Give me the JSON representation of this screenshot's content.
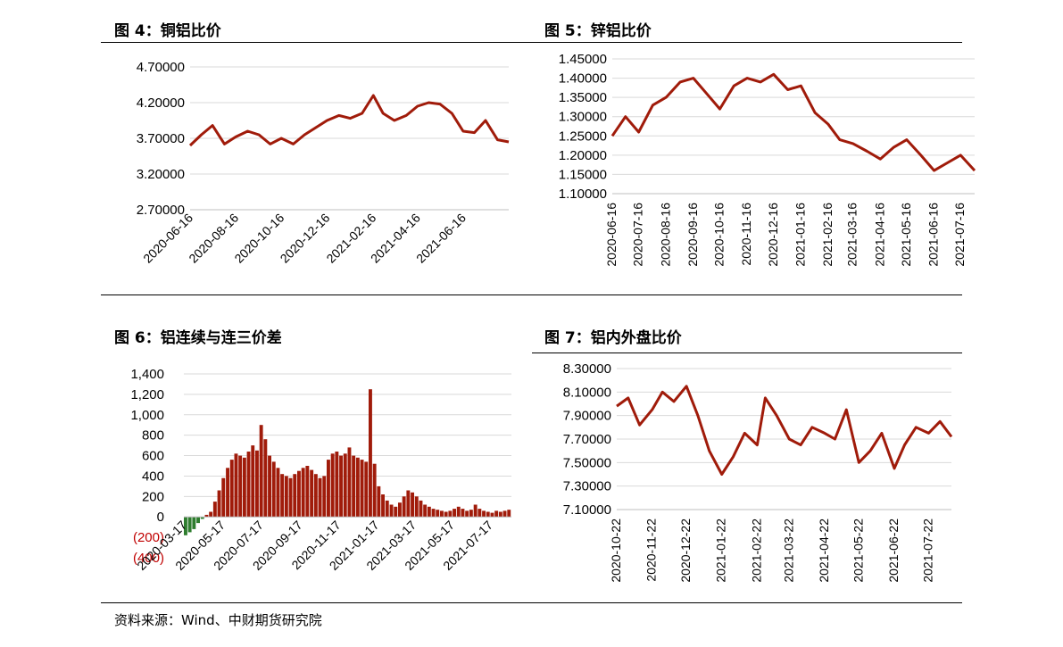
{
  "source_note": "资料来源：Wind、中财期货研究院",
  "colors": {
    "line": "#A01B0A",
    "bar_pos": "#A01B0A",
    "bar_neg": "#2E7D2E",
    "grid": "#D9D9D9",
    "neg_label": "#C00000"
  },
  "chart_data": [
    {
      "id": "fig4",
      "type": "line",
      "title": "图 4：铜铝比价",
      "ylim": [
        2.7,
        4.7
      ],
      "y_ticks": [
        "4.70000",
        "4.20000",
        "3.70000",
        "3.20000",
        "2.70000"
      ],
      "x_ticks": [
        "2020-06-16",
        "2020-08-16",
        "2020-10-16",
        "2020-12-16",
        "2021-02-16",
        "2021-04-16",
        "2021-06-16"
      ],
      "x": [
        "2020-06-16",
        "2020-07-01",
        "2020-07-16",
        "2020-08-01",
        "2020-08-16",
        "2020-09-01",
        "2020-09-16",
        "2020-10-01",
        "2020-10-16",
        "2020-11-01",
        "2020-11-16",
        "2020-12-01",
        "2020-12-16",
        "2021-01-01",
        "2021-01-16",
        "2021-02-01",
        "2021-02-16",
        "2021-03-01",
        "2021-03-16",
        "2021-04-01",
        "2021-04-16",
        "2021-05-01",
        "2021-05-16",
        "2021-06-01",
        "2021-06-16",
        "2021-07-01",
        "2021-07-16",
        "2021-08-01",
        "2021-08-16"
      ],
      "series": [
        {
          "values": [
            3.6,
            3.75,
            3.88,
            3.62,
            3.72,
            3.8,
            3.75,
            3.62,
            3.7,
            3.62,
            3.75,
            3.85,
            3.95,
            4.02,
            3.98,
            4.05,
            4.3,
            4.05,
            3.95,
            4.02,
            4.15,
            4.2,
            4.18,
            4.05,
            3.8,
            3.78,
            3.95,
            3.68,
            3.65
          ]
        }
      ]
    },
    {
      "id": "fig5",
      "type": "line",
      "title": "图 5：锌铝比价",
      "ylim": [
        1.1,
        1.45
      ],
      "y_ticks": [
        "1.45000",
        "1.40000",
        "1.35000",
        "1.30000",
        "1.25000",
        "1.20000",
        "1.15000",
        "1.10000"
      ],
      "x_ticks": [
        "2020-06-16",
        "2020-07-16",
        "2020-08-16",
        "2020-09-16",
        "2020-10-16",
        "2020-11-16",
        "2020-12-16",
        "2021-01-16",
        "2021-02-16",
        "2021-03-16",
        "2021-04-16",
        "2021-05-16",
        "2021-06-16",
        "2021-07-16"
      ],
      "x": [
        "2020-06-16",
        "2020-07-01",
        "2020-07-16",
        "2020-08-01",
        "2020-08-16",
        "2020-09-01",
        "2020-09-16",
        "2020-10-01",
        "2020-10-16",
        "2020-11-01",
        "2020-11-16",
        "2020-12-01",
        "2020-12-16",
        "2021-01-01",
        "2021-01-16",
        "2021-02-01",
        "2021-02-16",
        "2021-03-01",
        "2021-03-16",
        "2021-04-01",
        "2021-04-16",
        "2021-05-01",
        "2021-05-16",
        "2021-06-01",
        "2021-06-16",
        "2021-07-01",
        "2021-07-16",
        "2021-08-01"
      ],
      "series": [
        {
          "values": [
            1.25,
            1.3,
            1.26,
            1.33,
            1.35,
            1.39,
            1.4,
            1.36,
            1.32,
            1.38,
            1.4,
            1.39,
            1.41,
            1.37,
            1.38,
            1.31,
            1.28,
            1.24,
            1.23,
            1.21,
            1.19,
            1.22,
            1.24,
            1.2,
            1.16,
            1.18,
            1.2,
            1.16
          ]
        }
      ]
    },
    {
      "id": "fig6",
      "type": "bar",
      "title": "图 6：铝连续与连三价差",
      "ylim": [
        -400,
        1400
      ],
      "y_ticks": [
        "1,400",
        "1,200",
        "1,000",
        "800",
        "600",
        "400",
        "200",
        "0",
        "(200)",
        "(400)"
      ],
      "x_ticks": [
        "2020-03-17",
        "2020-05-17",
        "2020-07-17",
        "2020-09-17",
        "2020-11-17",
        "2021-01-17",
        "2021-03-17",
        "2021-05-17",
        "2021-07-17"
      ],
      "x_range": [
        "2020-03-17",
        "2021-08-20"
      ],
      "series": [
        {
          "values": [
            -180,
            -150,
            -120,
            -60,
            -20,
            20,
            50,
            150,
            260,
            380,
            480,
            560,
            620,
            600,
            580,
            640,
            700,
            650,
            900,
            760,
            600,
            540,
            480,
            420,
            400,
            380,
            420,
            450,
            480,
            500,
            460,
            420,
            380,
            400,
            560,
            620,
            640,
            600,
            620,
            680,
            600,
            580,
            560,
            540,
            1250,
            520,
            300,
            220,
            160,
            120,
            100,
            140,
            200,
            260,
            240,
            200,
            160,
            120,
            100,
            80,
            70,
            60,
            50,
            60,
            80,
            100,
            80,
            60,
            70,
            120,
            80,
            60,
            50,
            40,
            60,
            50,
            60,
            70
          ]
        }
      ]
    },
    {
      "id": "fig7",
      "type": "line",
      "title": "图 7：铝内外盘比价",
      "ylim": [
        7.1,
        8.3
      ],
      "y_ticks": [
        "8.30000",
        "8.10000",
        "7.90000",
        "7.70000",
        "7.50000",
        "7.30000",
        "7.10000"
      ],
      "x_ticks": [
        "2020-10-22",
        "2020-11-22",
        "2020-12-22",
        "2021-01-22",
        "2021-02-22",
        "2021-03-22",
        "2021-04-22",
        "2021-05-22",
        "2021-06-22",
        "2021-07-22"
      ],
      "x": [
        "2020-10-22",
        "2020-11-01",
        "2020-11-11",
        "2020-11-22",
        "2020-12-01",
        "2020-12-11",
        "2020-12-22",
        "2021-01-01",
        "2021-01-11",
        "2021-01-22",
        "2021-02-01",
        "2021-02-11",
        "2021-02-22",
        "2021-03-01",
        "2021-03-11",
        "2021-03-22",
        "2021-04-01",
        "2021-04-11",
        "2021-04-22",
        "2021-05-01",
        "2021-05-11",
        "2021-05-22",
        "2021-06-01",
        "2021-06-11",
        "2021-06-22",
        "2021-07-01",
        "2021-07-11",
        "2021-07-22",
        "2021-08-01",
        "2021-08-11"
      ],
      "series": [
        {
          "values": [
            7.98,
            8.05,
            7.82,
            7.95,
            8.1,
            8.02,
            8.15,
            7.9,
            7.6,
            7.4,
            7.55,
            7.75,
            7.65,
            8.05,
            7.9,
            7.7,
            7.65,
            7.8,
            7.75,
            7.7,
            7.95,
            7.5,
            7.6,
            7.75,
            7.45,
            7.65,
            7.8,
            7.75,
            7.85,
            7.72
          ]
        }
      ]
    }
  ]
}
